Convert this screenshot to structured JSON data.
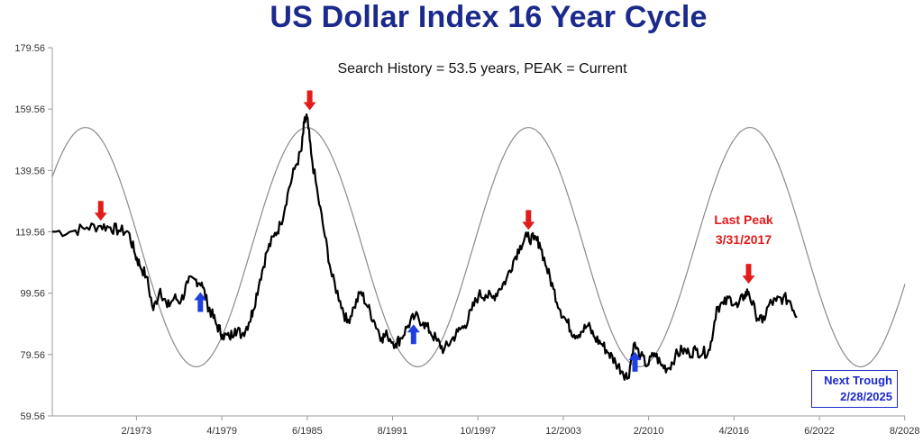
{
  "title": "US Dollar Index 16 Year Cycle",
  "subtitle": "Search History = 53.5 years, PEAK = Current",
  "last_peak": {
    "label": "Last Peak",
    "date": "3/31/2017"
  },
  "next_trough": {
    "label": "Next Trough",
    "date": "2/28/2025"
  },
  "colors": {
    "title": "#1b2a8c",
    "price": "#000000",
    "cycle": "#8a8a8a",
    "peak_arrow": "#e21b1b",
    "trough_arrow": "#1f3fe0",
    "trough_box": "#1b2acc"
  },
  "chart_data": {
    "type": "line",
    "title": "US Dollar Index 16 Year Cycle",
    "subtitle": "Search History = 53.5 years, PEAK = Current",
    "xlabel": "",
    "ylabel": "",
    "x_ticks": [
      "2/1973",
      "4/1979",
      "6/1985",
      "8/1991",
      "10/1997",
      "12/2003",
      "2/2010",
      "4/2016",
      "6/2022",
      "8/2028"
    ],
    "x_tick_years": [
      1973.08,
      1979.25,
      1985.42,
      1991.58,
      1997.75,
      2003.92,
      2010.08,
      2016.25,
      2022.42,
      2028.58
    ],
    "y_ticks": [
      "59.56",
      "79.56",
      "99.56",
      "119.56",
      "139.56",
      "159.56",
      "179.56"
    ],
    "xlim": [
      1967.0,
      2028.6
    ],
    "ylim": [
      59.56,
      179.56
    ],
    "grid": false,
    "series": [
      {
        "role": "price",
        "x": [
          1967.0,
          1968.5,
          1969.5,
          1970.5,
          1971.2,
          1971.8,
          1972.5,
          1973.0,
          1973.3,
          1973.8,
          1974.3,
          1974.8,
          1975.3,
          1975.8,
          1976.3,
          1976.8,
          1977.3,
          1977.8,
          1978.2,
          1978.5,
          1978.9,
          1979.3,
          1979.8,
          1980.2,
          1980.7,
          1981.2,
          1981.5,
          1982.0,
          1982.5,
          1983.0,
          1983.5,
          1984.0,
          1984.5,
          1985.0,
          1985.2,
          1985.4,
          1985.7,
          1986.2,
          1986.7,
          1987.2,
          1987.8,
          1988.3,
          1988.8,
          1989.3,
          1989.8,
          1990.3,
          1990.8,
          1991.2,
          1991.8,
          1992.2,
          1992.7,
          1993.2,
          1993.8,
          1994.3,
          1994.8,
          1995.3,
          1995.8,
          1996.3,
          1996.8,
          1997.3,
          1997.8,
          1998.3,
          1998.8,
          1999.3,
          1999.8,
          2000.3,
          2000.8,
          2001.3,
          2001.8,
          2002.2,
          2002.7,
          2003.2,
          2003.7,
          2004.2,
          2004.7,
          2005.2,
          2005.7,
          2006.2,
          2006.7,
          2007.2,
          2007.7,
          2008.2,
          2008.6,
          2009.0,
          2009.5,
          2010.0,
          2010.5,
          2011.0,
          2011.5,
          2012.0,
          2012.5,
          2013.0,
          2013.5,
          2014.0,
          2014.5,
          2015.0,
          2015.5,
          2016.0,
          2016.5,
          2017.0,
          2017.3,
          2017.8,
          2018.3,
          2018.8,
          2019.3,
          2019.8,
          2020.3,
          2020.8
        ],
        "values": [
          119.6,
          119.8,
          121.0,
          121.5,
          121.0,
          120.0,
          119.5,
          112.0,
          109.0,
          105.0,
          94.0,
          101.0,
          95.0,
          98.0,
          97.0,
          103.0,
          104.0,
          103.0,
          96.0,
          93.0,
          89.0,
          86.0,
          85.0,
          88.0,
          86.0,
          90.0,
          94.0,
          104.0,
          113.0,
          118.0,
          122.0,
          132.0,
          140.0,
          146.0,
          155.0,
          157.0,
          145.0,
          131.0,
          118.0,
          105.0,
          97.0,
          90.0,
          95.0,
          100.0,
          95.0,
          90.0,
          85.0,
          86.0,
          83.0,
          85.0,
          89.0,
          92.0,
          90.0,
          87.0,
          84.0,
          81.0,
          84.0,
          87.0,
          89.0,
          94.0,
          99.0,
          99.0,
          98.0,
          101.0,
          104.0,
          110.0,
          115.0,
          118.0,
          117.0,
          116.0,
          108.0,
          101.0,
          94.0,
          90.0,
          86.0,
          87.0,
          89.0,
          85.0,
          83.0,
          80.0,
          77.0,
          74.0,
          72.0,
          83.0,
          79.0,
          76.0,
          80.0,
          76.0,
          75.0,
          79.0,
          81.0,
          80.0,
          81.0,
          80.0,
          81.0,
          95.0,
          96.0,
          98.0,
          95.0,
          99.0,
          100.0,
          93.0,
          90.0,
          96.0,
          97.0,
          98.0,
          97.0,
          92.0
        ]
      },
      {
        "role": "cycle",
        "period_years": 16,
        "phase_peak_year": 1985.4,
        "amplitude": 39.0,
        "center": 114.56
      }
    ],
    "annotations": [
      {
        "type": "peak_arrow",
        "x": 1970.5,
        "y": 122.0
      },
      {
        "type": "peak_arrow",
        "x": 1985.6,
        "y": 158.0
      },
      {
        "type": "peak_arrow",
        "x": 2001.4,
        "y": 119.0
      },
      {
        "type": "peak_arrow",
        "x": 2017.3,
        "y": 101.5
      },
      {
        "type": "trough_arrow",
        "x": 1977.7,
        "y": 100.5
      },
      {
        "type": "trough_arrow",
        "x": 1993.1,
        "y": 90.0
      },
      {
        "type": "trough_arrow",
        "x": 2009.1,
        "y": 81.0
      }
    ]
  }
}
